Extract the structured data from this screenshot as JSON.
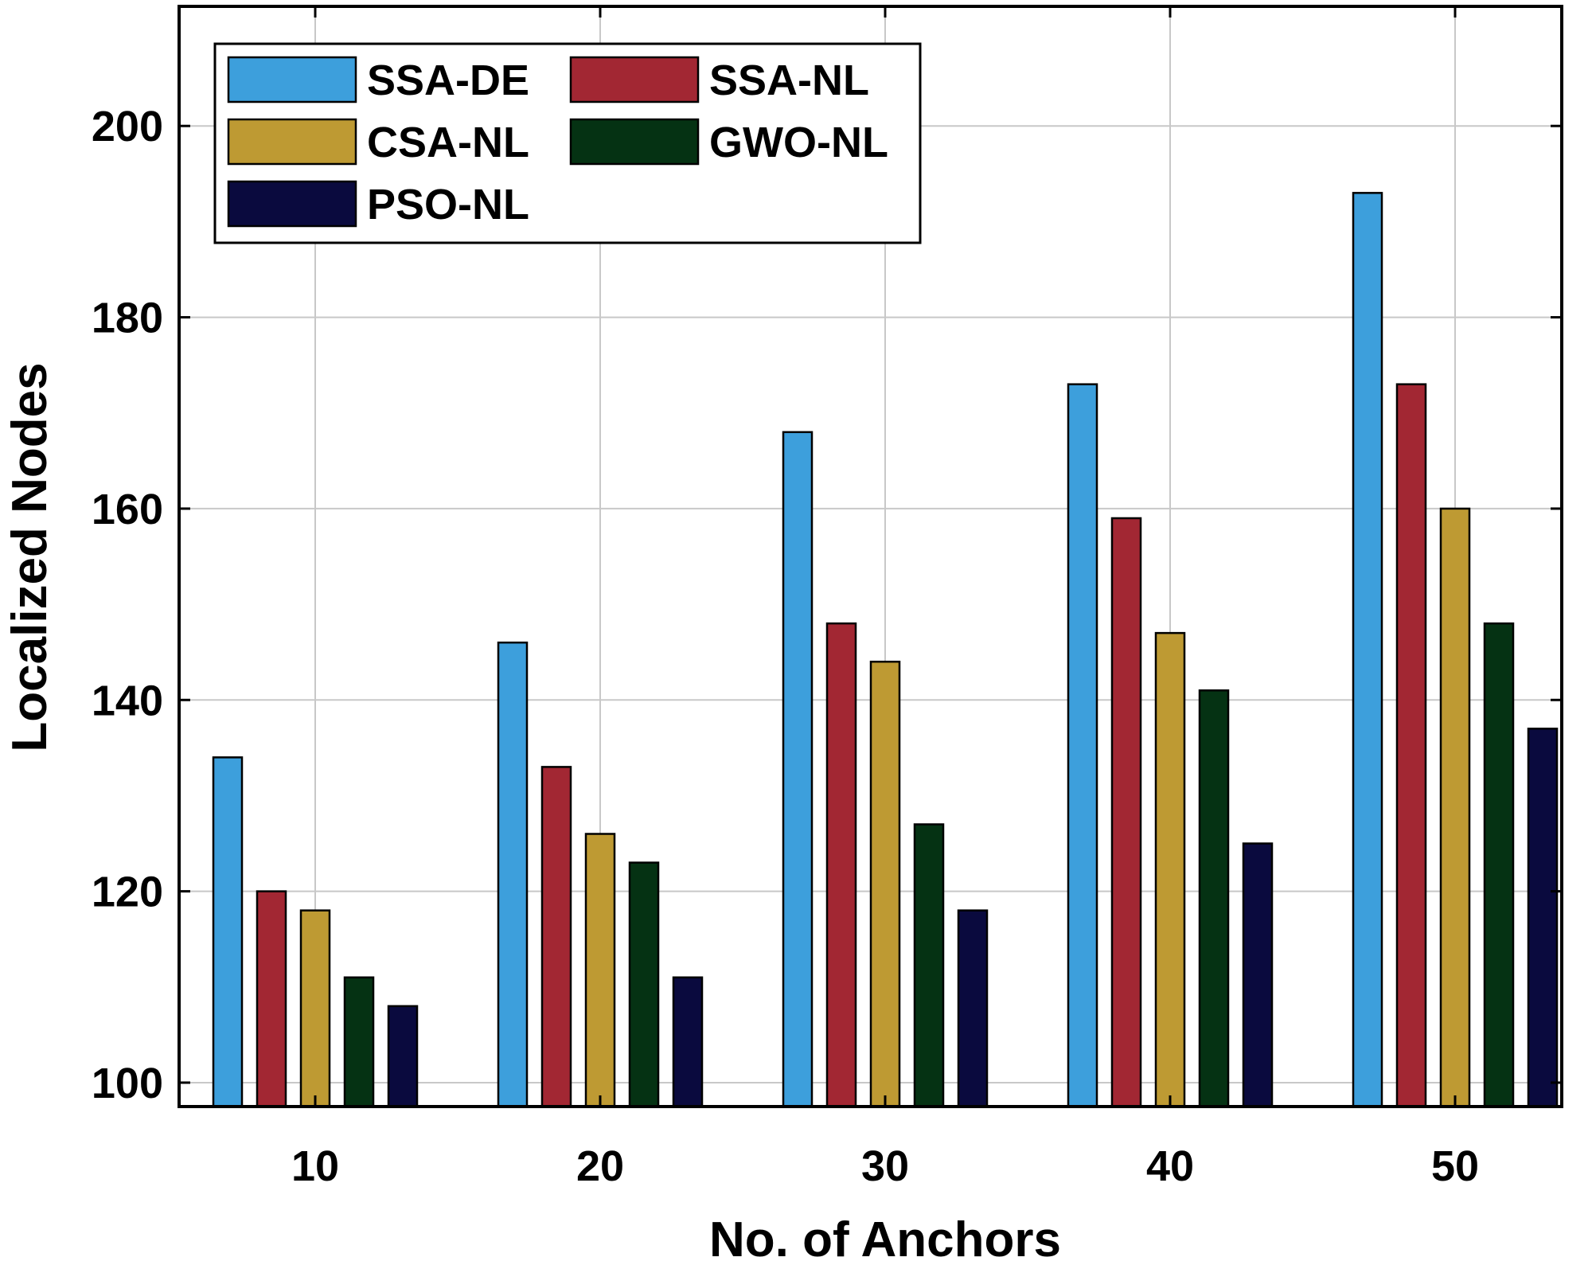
{
  "chart_data": {
    "type": "bar",
    "title": "",
    "xlabel": "No. of Anchors",
    "ylabel": "Localized Nodes",
    "categories": [
      "10",
      "20",
      "30",
      "40",
      "50"
    ],
    "series": [
      {
        "name": "SSA-DE",
        "color": "#3D9FDC",
        "values": [
          134,
          146,
          168,
          173,
          193
        ]
      },
      {
        "name": "SSA-NL",
        "color": "#A22733",
        "values": [
          120,
          133,
          148,
          159,
          173
        ]
      },
      {
        "name": "CSA-NL",
        "color": "#BE9A33",
        "values": [
          118,
          126,
          144,
          147,
          160
        ]
      },
      {
        "name": "GWO-NL",
        "color": "#053213",
        "values": [
          111,
          123,
          127,
          141,
          148
        ]
      },
      {
        "name": "PSO-NL",
        "color": "#0A0A3E",
        "values": [
          108,
          111,
          118,
          125,
          137
        ]
      }
    ],
    "ylim": [
      97.5,
      212.5
    ],
    "yticks": [
      "100",
      "120",
      "140",
      "160",
      "180",
      "200"
    ],
    "grid": true,
    "legend_position": "top-left"
  }
}
